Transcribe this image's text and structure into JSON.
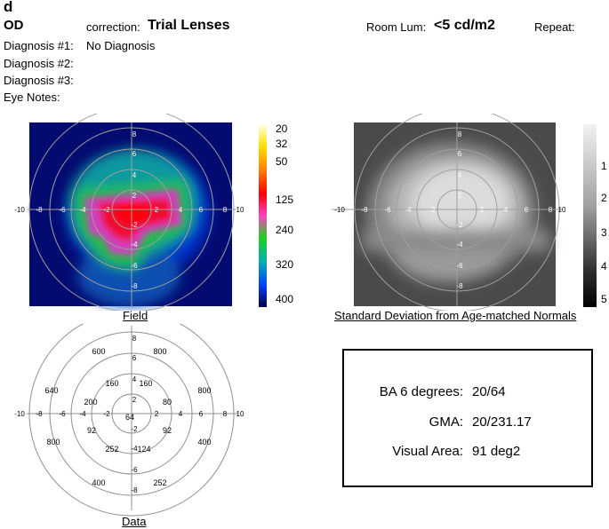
{
  "panel_letter": "d",
  "header": {
    "eye": "OD",
    "correction_label": "correction:",
    "correction_value": "Trial Lenses",
    "room_lum_label": "Room Lum:",
    "room_lum_value": "<5 cd/m2",
    "repeat_label": "Repeat:"
  },
  "diagnoses": [
    {
      "label": "Diagnosis #1:",
      "value": "No Diagnosis"
    },
    {
      "label": "Diagnosis #2:",
      "value": ""
    },
    {
      "label": "Diagnosis #3:",
      "value": ""
    },
    {
      "label": "Eye Notes:",
      "value": ""
    }
  ],
  "polar_ticks": [
    "-10",
    "-8",
    "-6",
    "-4",
    "-2",
    "2",
    "4",
    "6",
    "8",
    "10"
  ],
  "field_panel": {
    "label": "Field",
    "scale": [
      "20",
      "32",
      "50",
      "125",
      "240",
      "320",
      "400"
    ]
  },
  "sd_panel": {
    "label": "Standard Deviation from Age-matched Normals",
    "scale": [
      "1",
      "2",
      "3",
      "4",
      "5"
    ]
  },
  "data_panel": {
    "label": "Data",
    "points": [
      "600",
      "800",
      "640",
      "800",
      "160",
      "160",
      "200",
      "80",
      "64",
      "92",
      "92",
      "800",
      "400",
      "252",
      "124",
      "400",
      "252"
    ]
  },
  "summary": {
    "ba_label": "BA 6 degrees:",
    "ba_value": "20/64",
    "gma_label": "GMA:",
    "gma_value": "20/231.17",
    "va_label": "Visual Area:",
    "va_value": "91 deg2"
  },
  "colors": {
    "field_low": "#00007a",
    "field_mid": "#00b060",
    "field_high": "#e80020",
    "field_bg": "#020a6a"
  }
}
